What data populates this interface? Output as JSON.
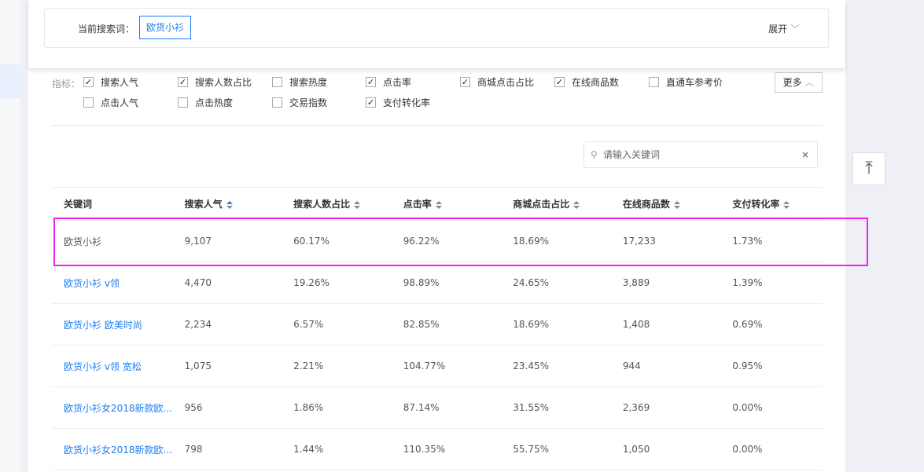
{
  "search": {
    "label": "当前搜索词：",
    "term": "欧货小衫",
    "expand": "展开"
  },
  "metrics": {
    "label": "指标：",
    "more": "更多",
    "items": [
      {
        "label": "搜索人气",
        "checked": true
      },
      {
        "label": "搜索人数占比",
        "checked": true
      },
      {
        "label": "搜索热度",
        "checked": false
      },
      {
        "label": "点击率",
        "checked": true
      },
      {
        "label": "商城点击占比",
        "checked": true
      },
      {
        "label": "在线商品数",
        "checked": true
      },
      {
        "label": "直通车参考价",
        "checked": false
      },
      {
        "label": "点击人气",
        "checked": false
      },
      {
        "label": "点击热度",
        "checked": false
      },
      {
        "label": "交易指数",
        "checked": false
      },
      {
        "label": "支付转化率",
        "checked": true
      }
    ]
  },
  "keyword_search": {
    "placeholder": "请输入关键词",
    "clear": "×"
  },
  "table": {
    "headers": [
      "关键词",
      "搜索人气",
      "搜索人数占比",
      "点击率",
      "商城点击占比",
      "在线商品数",
      "支付转化率"
    ],
    "rows": [
      [
        "欧货小衫",
        "9,107",
        "60.17%",
        "96.22%",
        "18.69%",
        "17,233",
        "1.73%"
      ],
      [
        "欧货小衫 v领",
        "4,470",
        "19.26%",
        "98.89%",
        "24.65%",
        "3,889",
        "1.39%"
      ],
      [
        "欧货小衫 欧美时尚",
        "2,234",
        "6.57%",
        "82.85%",
        "18.69%",
        "1,408",
        "0.69%"
      ],
      [
        "欧货小衫 v领 宽松",
        "1,075",
        "2.21%",
        "104.77%",
        "23.45%",
        "944",
        "0.95%"
      ],
      [
        "欧货小衫女2018新款欧...",
        "956",
        "1.86%",
        "87.14%",
        "31.55%",
        "2,369",
        "0.00%"
      ],
      [
        "欧货小衫女2018新款欧...",
        "798",
        "1.44%",
        "110.35%",
        "55.75%",
        "1,050",
        "0.00%"
      ]
    ]
  },
  "colors": {
    "accent": "#1a7ef5",
    "highlight": "#f21ef2"
  }
}
